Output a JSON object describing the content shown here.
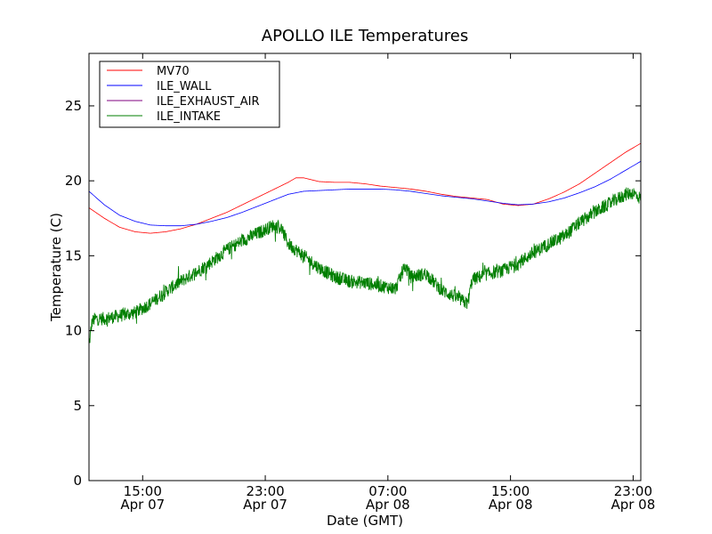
{
  "chart_data": {
    "type": "line",
    "title": "APOLLO ILE Temperatures",
    "xlabel": "Date (GMT)",
    "ylabel": "Temperature (C)",
    "xlim_hours": [
      0,
      36
    ],
    "ylim": [
      0,
      28.5
    ],
    "grid": false,
    "legend_position": "top-left",
    "x_ticks": [
      {
        "hour": 3.5,
        "time": "15:00",
        "date": "Apr 07"
      },
      {
        "hour": 11.5,
        "time": "23:00",
        "date": "Apr 07"
      },
      {
        "hour": 19.5,
        "time": "07:00",
        "date": "Apr 08"
      },
      {
        "hour": 27.5,
        "time": "15:00",
        "date": "Apr 08"
      },
      {
        "hour": 35.5,
        "time": "23:00",
        "date": "Apr 08"
      }
    ],
    "y_ticks": [
      {
        "value": 0,
        "label": "0"
      },
      {
        "value": 5,
        "label": "5"
      },
      {
        "value": 10,
        "label": "10"
      },
      {
        "value": 15,
        "label": "15"
      },
      {
        "value": 20,
        "label": "20"
      },
      {
        "value": 25,
        "label": "25"
      }
    ],
    "series": [
      {
        "name": "MV70",
        "color": "#ff0000",
        "x": [
          0,
          1,
          2,
          3,
          4,
          5,
          6,
          7,
          8,
          9,
          10,
          11,
          12,
          13,
          13.5,
          14,
          15,
          16,
          17,
          18,
          19,
          20,
          21,
          22,
          23,
          24,
          25,
          26,
          27,
          28,
          29,
          30,
          31,
          32,
          33,
          34,
          35,
          36
        ],
        "y": [
          18.2,
          17.5,
          16.9,
          16.6,
          16.5,
          16.6,
          16.8,
          17.1,
          17.5,
          17.9,
          18.4,
          18.9,
          19.4,
          19.9,
          20.2,
          20.2,
          19.95,
          19.9,
          19.9,
          19.8,
          19.65,
          19.55,
          19.45,
          19.3,
          19.1,
          18.95,
          18.85,
          18.75,
          18.45,
          18.35,
          18.45,
          18.8,
          19.25,
          19.8,
          20.5,
          21.2,
          21.9,
          22.5
        ]
      },
      {
        "name": "ILE_WALL",
        "color": "#0000ff",
        "x": [
          0,
          1,
          2,
          3,
          4,
          5,
          6,
          7,
          8,
          9,
          10,
          11,
          12,
          13,
          14,
          15,
          16,
          17,
          18,
          19,
          20,
          21,
          22,
          23,
          24,
          25,
          26,
          27,
          28,
          29,
          30,
          31,
          32,
          33,
          34,
          35,
          36
        ],
        "y": [
          19.3,
          18.4,
          17.7,
          17.3,
          17.05,
          17.0,
          17.0,
          17.1,
          17.3,
          17.55,
          17.9,
          18.3,
          18.7,
          19.1,
          19.3,
          19.35,
          19.4,
          19.45,
          19.45,
          19.45,
          19.4,
          19.3,
          19.15,
          19.0,
          18.9,
          18.8,
          18.65,
          18.5,
          18.4,
          18.45,
          18.6,
          18.85,
          19.2,
          19.6,
          20.1,
          20.7,
          21.3
        ]
      },
      {
        "name": "ILE_EXHAUST_AIR",
        "color": "#7f007f",
        "x": [],
        "y": []
      },
      {
        "name": "ILE_INTAKE",
        "color": "#007f00",
        "x": [
          0,
          0.2,
          0.4,
          1,
          2,
          3,
          4,
          5,
          6,
          7,
          8,
          9,
          10,
          11,
          12,
          12.5,
          13,
          14,
          15,
          16,
          17,
          18,
          19,
          20,
          20.6,
          21,
          22,
          23,
          24,
          24.7,
          25,
          26,
          27,
          28,
          29,
          30,
          31,
          32,
          33,
          34,
          35,
          35.5,
          36
        ],
        "y": [
          9.0,
          10.6,
          10.8,
          10.8,
          11.0,
          11.2,
          11.8,
          12.6,
          13.3,
          13.9,
          14.6,
          15.4,
          16.0,
          16.5,
          17.0,
          16.9,
          15.8,
          15.0,
          14.2,
          13.6,
          13.3,
          13.2,
          13.0,
          12.8,
          14.3,
          13.6,
          13.8,
          12.7,
          12.2,
          11.8,
          13.4,
          13.8,
          14.0,
          14.5,
          15.2,
          15.8,
          16.3,
          17.2,
          17.9,
          18.5,
          19.1,
          19.2,
          18.8
        ]
      }
    ]
  }
}
